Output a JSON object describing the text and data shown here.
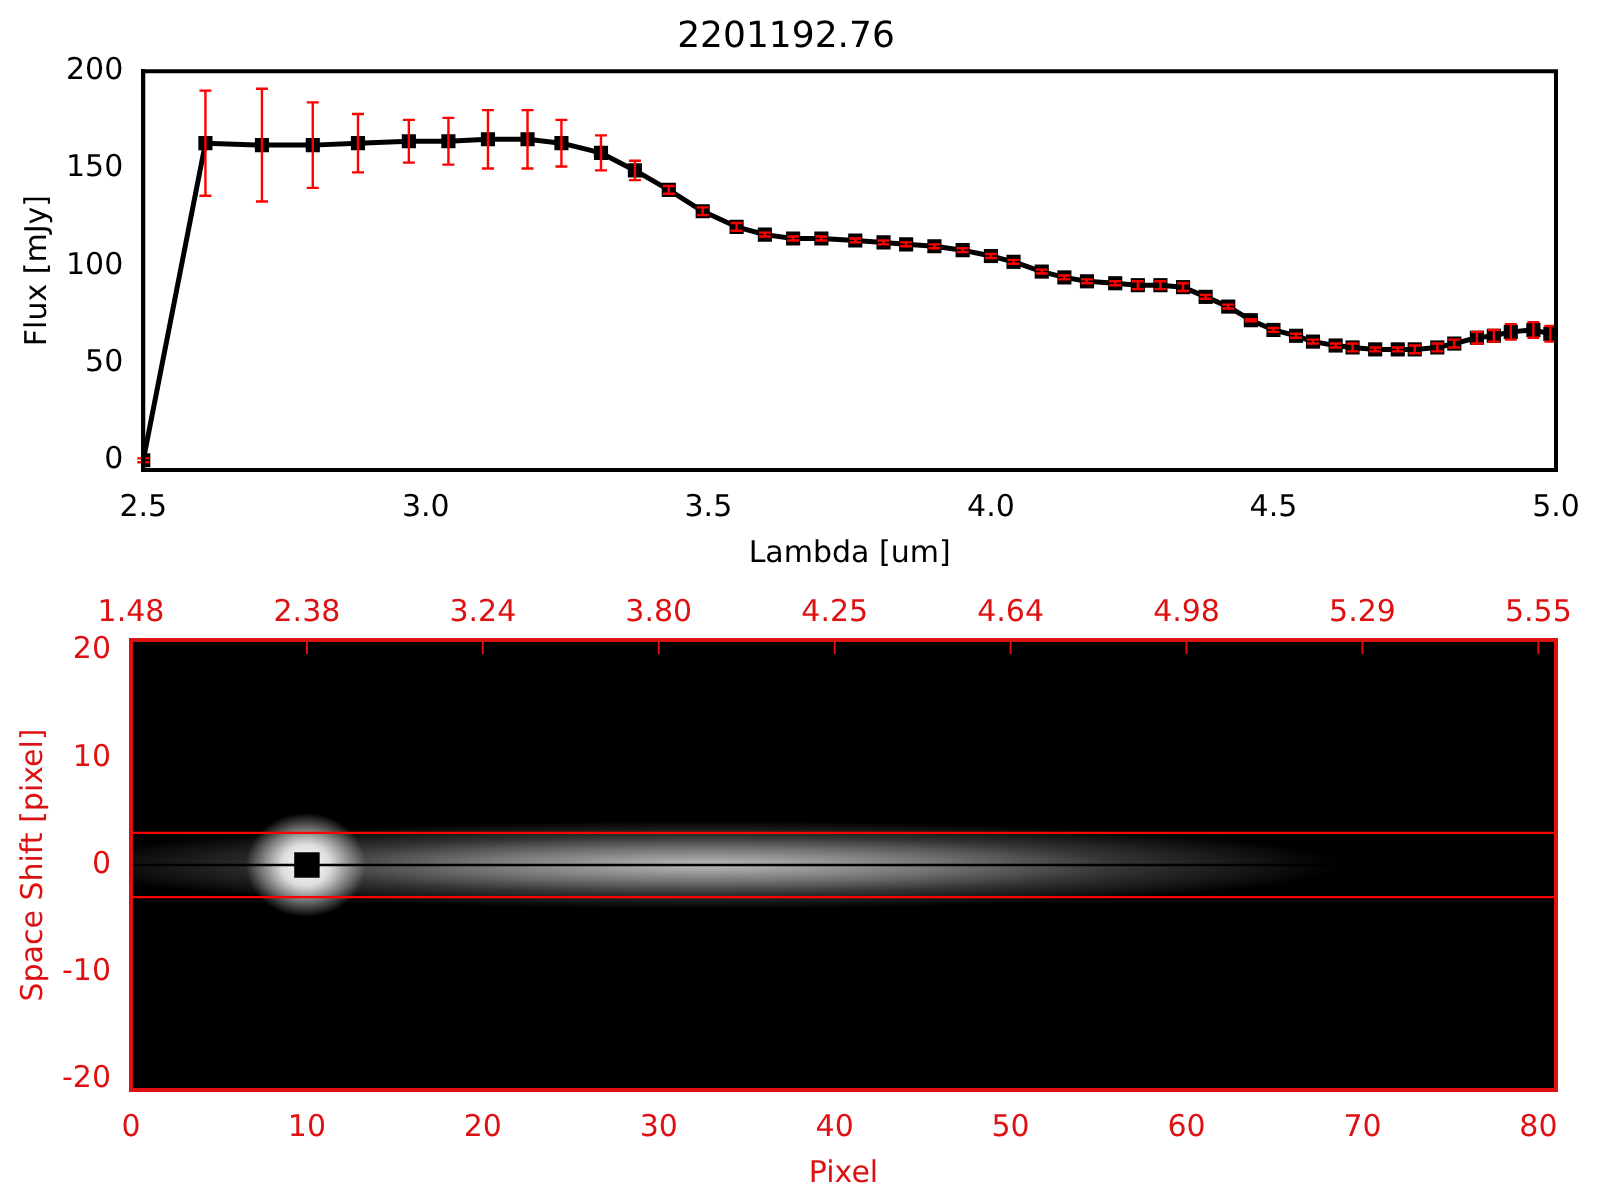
{
  "chart_data": [
    {
      "type": "line",
      "title": "2201192.76",
      "xlabel": "Lambda [um]",
      "ylabel": "Flux [mJy]",
      "xlim": [
        2.5,
        5.0
      ],
      "xticks": [
        2.5,
        {
          "value": 3,
          "label": "3.0"
        },
        3.5,
        {
          "value": 4,
          "label": "4.0"
        },
        4.5,
        {
          "value": 5,
          "label": "5.0"
        }
      ],
      "ylim": [
        -5,
        200
      ],
      "yticks": [
        0,
        50,
        100,
        150,
        200
      ],
      "grid": false,
      "legend": false,
      "marker": "square",
      "line_style": "solid",
      "series": [
        {
          "color": "#000000",
          "x": [
            2.5,
            2.61,
            2.71,
            2.8,
            2.88,
            2.97,
            3.04,
            3.11,
            3.18,
            3.24,
            3.31,
            3.37,
            3.43,
            3.49,
            3.55,
            3.6,
            3.65,
            3.7,
            3.76,
            3.81,
            3.85,
            3.9,
            3.95,
            4.0,
            4.04,
            4.09,
            4.13,
            4.17,
            4.22,
            4.26,
            4.3,
            4.34,
            4.38,
            4.42,
            4.46,
            4.5,
            4.54,
            4.57,
            4.61,
            4.64,
            4.68,
            4.72,
            4.75,
            4.79,
            4.82,
            4.86,
            4.89,
            4.92,
            4.96,
            4.99
          ],
          "values": [
            0,
            163,
            162,
            162,
            163,
            164,
            164,
            165,
            165,
            163,
            158,
            149,
            139,
            128,
            120,
            116,
            114,
            114,
            113,
            112,
            111,
            110,
            108,
            105,
            102,
            97,
            94,
            92,
            91,
            90,
            90,
            89,
            84,
            79,
            72,
            67,
            64,
            61,
            59,
            58,
            57,
            57,
            57,
            58,
            60,
            63,
            64,
            66,
            67,
            65
          ],
          "errors": [
            1,
            27,
            29,
            22,
            15,
            11,
            12,
            15,
            15,
            12,
            9,
            5,
            2,
            2,
            2,
            1,
            1,
            1,
            1,
            1,
            1,
            1,
            1,
            1,
            1,
            1,
            1,
            1,
            1,
            2,
            2,
            2,
            1,
            1,
            0.5,
            1,
            1,
            1,
            1,
            2,
            1,
            1,
            2,
            2,
            2,
            3,
            3,
            4,
            4,
            4
          ]
        }
      ]
    },
    {
      "type": "scatter",
      "xlabel": "Pixel",
      "ylabel": "Space Shift [pixel]",
      "xlim": [
        0,
        81
      ],
      "xticks": [
        0,
        10,
        20,
        30,
        40,
        50,
        60,
        70,
        80
      ],
      "annotations": [
        "1.48",
        "2.38",
        "3.24",
        "3.80",
        "4.25",
        "4.64",
        "4.98",
        "5.29",
        "5.55"
      ],
      "ylim": [
        -21,
        21
      ],
      "yticks": [
        -20,
        -10,
        0,
        10,
        20
      ],
      "grid": false,
      "legend": false,
      "marker": "square",
      "series": [
        {
          "color": "#000000",
          "x": [
            10
          ],
          "values": [
            0
          ]
        }
      ],
      "ref_lines": [
        {
          "axis": "y",
          "value": 3,
          "color": "#ff0000"
        },
        {
          "axis": "y",
          "value": -3,
          "color": "#ff0000"
        },
        {
          "axis": "y",
          "value": 0,
          "color": "#000000"
        }
      ]
    }
  ]
}
